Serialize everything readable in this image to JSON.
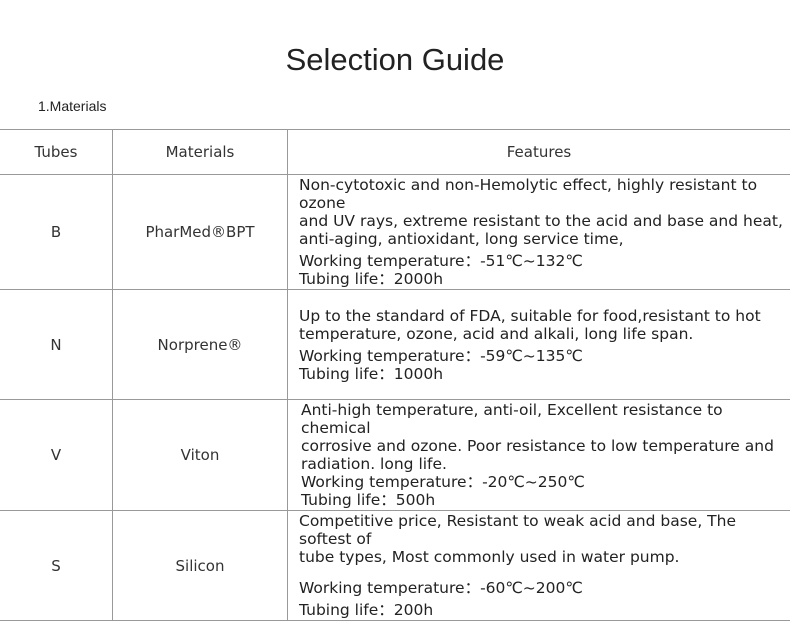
{
  "title": "Selection Guide",
  "section": "1.Materials",
  "headers": [
    "Tubes",
    "Materials",
    "Features"
  ],
  "rows": [
    {
      "tube": "B",
      "material": "PharMed®BPT",
      "features": [
        "Non-cytotoxic and non-Hemolytic effect, highly resistant to ozone",
        "and UV rays, extreme resistant to the acid and base and heat,",
        "anti-aging, antioxidant, long service time,"
      ],
      "temp": "Working temperature：-51℃~132℃",
      "life": "Tubing life：2000h"
    },
    {
      "tube": "N",
      "material": "Norprene®",
      "features": [
        "Up to the standard of FDA, suitable for food,resistant to hot",
        "temperature, ozone, acid and alkali, long life span."
      ],
      "temp": "Working temperature：-59℃~135℃",
      "life": "Tubing life：1000h"
    },
    {
      "tube": "V",
      "material": "Viton",
      "features": [
        "Anti-high temperature, anti-oil, Excellent resistance to chemical",
        "corrosive and ozone. Poor resistance to low temperature and",
        "radiation. long life."
      ],
      "temp": "Working temperature：-20℃~250℃",
      "life": "Tubing life：500h"
    },
    {
      "tube": "S",
      "material": "Silicon",
      "features": [
        "Competitive price, Resistant to weak acid and base, The softest of",
        "tube types, Most commonly used in water pump."
      ],
      "temp": "Working temperature：-60℃~200℃",
      "life": "Tubing life：200h"
    }
  ]
}
